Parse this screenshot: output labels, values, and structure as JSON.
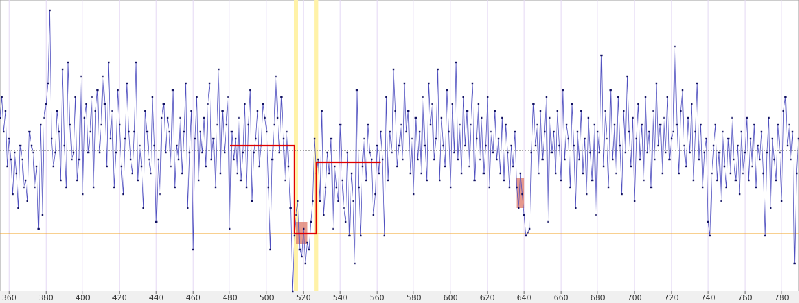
{
  "chart_data": {
    "type": "line",
    "xlim": [
      355,
      789.4
    ],
    "ylim": [
      0,
      420
    ],
    "xticks": [
      360,
      380,
      400,
      420,
      440,
      460,
      480,
      500,
      520,
      540,
      560,
      580,
      600,
      620,
      640,
      660,
      680,
      700,
      720,
      740,
      760,
      780
    ],
    "grid": true,
    "color": "#5050c0",
    "marker_color": "#101060",
    "x": [
      355,
      356,
      357,
      358,
      359,
      360,
      361,
      362,
      363,
      364,
      365,
      366,
      367,
      368,
      369,
      370,
      371,
      372,
      373,
      374,
      375,
      376,
      377,
      378,
      379,
      380,
      381,
      382,
      383,
      384,
      385,
      386,
      387,
      388,
      389,
      390,
      391,
      392,
      393,
      394,
      395,
      396,
      397,
      398,
      399,
      400,
      401,
      402,
      403,
      404,
      405,
      406,
      407,
      408,
      409,
      410,
      411,
      412,
      413,
      414,
      415,
      416,
      417,
      418,
      419,
      420,
      421,
      422,
      423,
      424,
      425,
      426,
      427,
      428,
      429,
      430,
      431,
      432,
      433,
      434,
      435,
      436,
      437,
      438,
      439,
      440,
      441,
      442,
      443,
      444,
      445,
      446,
      447,
      448,
      449,
      450,
      451,
      452,
      453,
      454,
      455,
      456,
      457,
      458,
      459,
      460,
      461,
      462,
      463,
      464,
      465,
      466,
      467,
      468,
      469,
      470,
      471,
      472,
      473,
      474,
      475,
      476,
      477,
      478,
      479,
      480,
      481,
      482,
      483,
      484,
      485,
      486,
      487,
      488,
      489,
      490,
      491,
      492,
      493,
      494,
      495,
      496,
      497,
      498,
      499,
      500,
      501,
      502,
      503,
      504,
      505,
      506,
      507,
      508,
      509,
      510,
      511,
      512,
      513,
      514,
      515,
      516,
      517,
      518,
      519,
      520,
      521,
      522,
      523,
      524,
      525,
      526,
      527,
      528,
      529,
      530,
      531,
      532,
      533,
      534,
      535,
      536,
      537,
      538,
      539,
      540,
      541,
      542,
      543,
      544,
      545,
      546,
      547,
      548,
      549,
      550,
      551,
      552,
      553,
      554,
      555,
      556,
      557,
      558,
      559,
      560,
      561,
      562,
      563,
      564,
      565,
      566,
      567,
      568,
      569,
      570,
      571,
      572,
      573,
      574,
      575,
      576,
      577,
      578,
      579,
      580,
      581,
      582,
      583,
      584,
      585,
      586,
      587,
      588,
      589,
      590,
      591,
      592,
      593,
      594,
      595,
      596,
      597,
      598,
      599,
      600,
      601,
      602,
      603,
      604,
      605,
      606,
      607,
      608,
      609,
      610,
      611,
      612,
      613,
      614,
      615,
      616,
      617,
      618,
      619,
      620,
      621,
      622,
      623,
      624,
      625,
      626,
      627,
      628,
      629,
      630,
      631,
      632,
      633,
      634,
      635,
      636,
      637,
      638,
      639,
      640,
      641,
      642,
      643,
      644,
      645,
      646,
      647,
      648,
      649,
      650,
      651,
      652,
      653,
      654,
      655,
      656,
      657,
      658,
      659,
      660,
      661,
      662,
      663,
      664,
      665,
      666,
      667,
      668,
      669,
      670,
      671,
      672,
      673,
      674,
      675,
      676,
      677,
      678,
      679,
      680,
      681,
      682,
      683,
      684,
      685,
      686,
      687,
      688,
      689,
      690,
      691,
      692,
      693,
      694,
      695,
      696,
      697,
      698,
      699,
      700,
      701,
      702,
      703,
      704,
      705,
      706,
      707,
      708,
      709,
      710,
      711,
      712,
      713,
      714,
      715,
      716,
      717,
      718,
      719,
      720,
      721,
      722,
      723,
      724,
      725,
      726,
      727,
      728,
      729,
      730,
      731,
      732,
      733,
      734,
      735,
      736,
      737,
      738,
      739,
      740,
      741,
      742,
      743,
      744,
      745,
      746,
      747,
      748,
      749,
      750,
      751,
      752,
      753,
      754,
      755,
      756,
      757,
      758,
      759,
      760,
      761,
      762,
      763,
      764,
      765,
      766,
      767,
      768,
      769,
      770,
      771,
      772,
      773,
      774,
      775,
      776,
      777,
      778,
      779,
      780,
      781,
      782,
      783,
      784,
      785,
      786,
      787,
      788,
      789
    ],
    "values": [
      250,
      280,
      230,
      260,
      180,
      220,
      190,
      140,
      200,
      170,
      120,
      210,
      190,
      150,
      160,
      130,
      230,
      210,
      200,
      150,
      180,
      90,
      240,
      110,
      250,
      270,
      300,
      405,
      220,
      180,
      200,
      260,
      230,
      160,
      320,
      210,
      150,
      330,
      240,
      190,
      200,
      280,
      160,
      190,
      310,
      140,
      250,
      270,
      200,
      230,
      280,
      150,
      260,
      290,
      200,
      240,
      310,
      270,
      180,
      330,
      220,
      260,
      150,
      200,
      290,
      240,
      180,
      140,
      220,
      300,
      230,
      190,
      170,
      230,
      330,
      160,
      210,
      180,
      120,
      260,
      230,
      190,
      170,
      280,
      210,
      100,
      190,
      140,
      250,
      270,
      200,
      250,
      230,
      180,
      290,
      150,
      210,
      190,
      250,
      170,
      230,
      300,
      120,
      200,
      260,
      60,
      220,
      280,
      160,
      230,
      200,
      250,
      180,
      270,
      300,
      190,
      220,
      150,
      240,
      320,
      170,
      260,
      200,
      240,
      280,
      90,
      230,
      190,
      220,
      170,
      250,
      160,
      200,
      270,
      150,
      240,
      290,
      130,
      200,
      220,
      260,
      180,
      210,
      270,
      250,
      230,
      150,
      60,
      190,
      240,
      310,
      250,
      200,
      280,
      220,
      160,
      230,
      180,
      120,
      0,
      80,
      110,
      130,
      60,
      50,
      90,
      40,
      70,
      60,
      100,
      130,
      220,
      170,
      190,
      130,
      260,
      110,
      150,
      200,
      170,
      220,
      90,
      180,
      150,
      130,
      240,
      160,
      120,
      100,
      200,
      80,
      170,
      130,
      40,
      290,
      150,
      80,
      180,
      220,
      160,
      240,
      200,
      190,
      110,
      140,
      210,
      170,
      230,
      190,
      80,
      280,
      160,
      230,
      200,
      320,
      260,
      180,
      210,
      240,
      190,
      300,
      230,
      260,
      170,
      220,
      140,
      250,
      190,
      230,
      170,
      280,
      210,
      160,
      300,
      240,
      270,
      190,
      220,
      320,
      160,
      250,
      210,
      180,
      290,
      230,
      150,
      270,
      200,
      330,
      190,
      240,
      170,
      280,
      210,
      260,
      180,
      240,
      300,
      160,
      220,
      270,
      190,
      250,
      170,
      210,
      280,
      150,
      230,
      200,
      260,
      190,
      220,
      170,
      250,
      160,
      240,
      200,
      150,
      210,
      180,
      230,
      150,
      120,
      170,
      140,
      110,
      80,
      85,
      90,
      200,
      270,
      210,
      240,
      170,
      260,
      190,
      230,
      280,
      100,
      250,
      200,
      230,
      170,
      260,
      210,
      160,
      290,
      190,
      240,
      220,
      150,
      270,
      210,
      120,
      230,
      190,
      260,
      170,
      220,
      140,
      250,
      200,
      160,
      240,
      110,
      230,
      200,
      340,
      180,
      260,
      220,
      150,
      290,
      190,
      240,
      170,
      280,
      210,
      140,
      260,
      200,
      310,
      230,
      180,
      250,
      130,
      220,
      270,
      190,
      240,
      160,
      280,
      200,
      230,
      150,
      260,
      190,
      300,
      210,
      240,
      170,
      250,
      200,
      280,
      190,
      220,
      230,
      353,
      240,
      170,
      260,
      290,
      210,
      180,
      250,
      200,
      270,
      160,
      230,
      300,
      190,
      240,
      150,
      200,
      220,
      100,
      80,
      170,
      210,
      240,
      160,
      200,
      130,
      230,
      180,
      150,
      220,
      170,
      250,
      190,
      160,
      210,
      140,
      230,
      170,
      200,
      250,
      160,
      220,
      180,
      240,
      150,
      210,
      190,
      230,
      170,
      80,
      200,
      250,
      120,
      220,
      190,
      160,
      240,
      200,
      130,
      260,
      280,
      210,
      240,
      190,
      230,
      40,
      170,
      220
    ],
    "hlines": [
      {
        "value": 203,
        "color": "#555555",
        "dash": true
      },
      {
        "value": 83,
        "color": "#f0a020"
      }
    ],
    "step": {
      "color": "#e00000",
      "x": [
        480,
        515,
        515,
        527,
        527,
        562
      ],
      "values": [
        210,
        210,
        83,
        83,
        186,
        186
      ]
    },
    "bands": [
      {
        "x": [
          515,
          517
        ],
        "color": "#fff2a8"
      },
      {
        "x": [
          526,
          528
        ],
        "color": "#fff2a8"
      }
    ],
    "boxes": [
      {
        "x": [
          516,
          522
        ],
        "y": [
          68,
          100
        ],
        "color": "#e08070"
      },
      {
        "x": [
          636,
          640
        ],
        "y": [
          120,
          163
        ],
        "color": "#e08070"
      }
    ]
  }
}
